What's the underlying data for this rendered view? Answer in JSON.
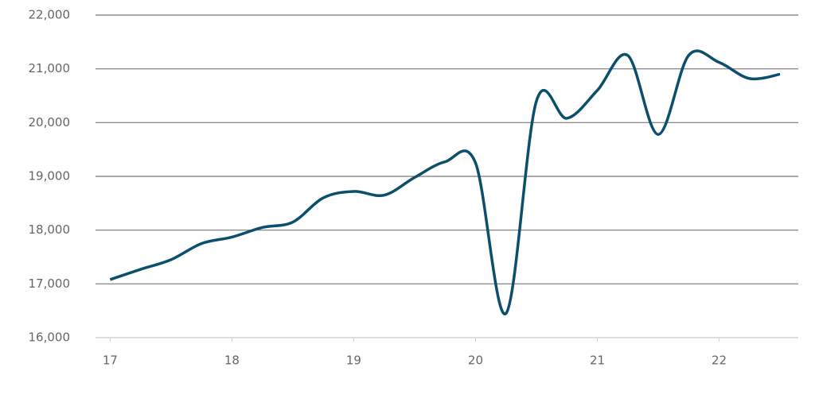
{
  "chart_data": {
    "type": "line",
    "x": [
      17,
      17.25,
      17.5,
      17.75,
      18,
      18.25,
      18.5,
      18.75,
      19,
      19.25,
      19.5,
      19.75,
      20,
      20.25,
      20.5,
      20.75,
      21,
      21.25,
      21.5,
      21.75,
      22,
      22.25,
      22.5
    ],
    "series": [
      {
        "color": "#0b4f6c",
        "values": [
          17080,
          17270,
          17450,
          17750,
          17870,
          18050,
          18150,
          18600,
          18720,
          18650,
          18980,
          19270,
          19250,
          16450,
          20400,
          20080,
          20600,
          21250,
          19780,
          21250,
          21120,
          20820,
          20900
        ]
      }
    ],
    "xlim": [
      16.88,
      22.65
    ],
    "xticks": [
      17,
      18,
      19,
      20,
      21,
      22
    ],
    "ylim": [
      16000,
      22000
    ],
    "yticks": [
      {
        "value": 16000,
        "label": "16,000"
      },
      {
        "value": 17000,
        "label": "17,000"
      },
      {
        "value": 18000,
        "label": "18,000"
      },
      {
        "value": 19000,
        "label": "19,000"
      },
      {
        "value": 20000,
        "label": "20,000"
      },
      {
        "value": 21000,
        "label": "21,000"
      },
      {
        "value": 22000,
        "label": "22,000"
      }
    ],
    "grid": true
  }
}
